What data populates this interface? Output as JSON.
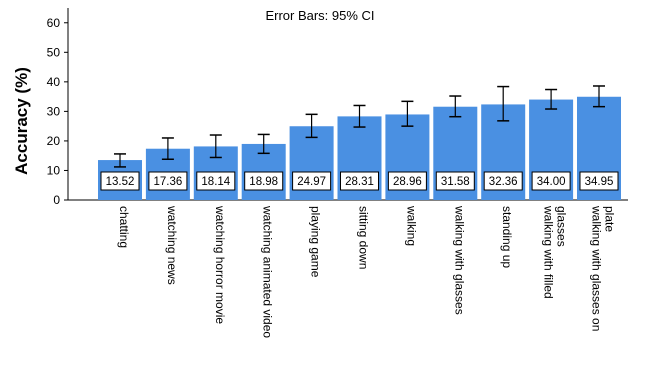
{
  "chart_data": {
    "type": "bar",
    "annotation": "Error Bars: 95% CI",
    "ylabel": "Accuracy (%)",
    "xlabel": "",
    "ylim": [
      0,
      65
    ],
    "yticks": [
      0,
      10,
      20,
      30,
      40,
      50,
      60
    ],
    "bar_color": "#4a90e2",
    "categories": [
      "chatting",
      "watching news",
      "watching horror movie",
      "watching animated video",
      "playing game",
      "sitting down",
      "walking",
      "walking with glasses",
      "standing up",
      "walking with filled glasses",
      "walking with glasses on plate"
    ],
    "category_lines": [
      [
        "chatting"
      ],
      [
        "watching news"
      ],
      [
        "watching horror movie"
      ],
      [
        "watching animated video"
      ],
      [
        "playing game"
      ],
      [
        "sitting down"
      ],
      [
        "walking"
      ],
      [
        "walking with  glasses"
      ],
      [
        "standing up"
      ],
      [
        "walking with filled",
        "glasses"
      ],
      [
        "walking with glasses on",
        "plate"
      ]
    ],
    "values": [
      13.52,
      17.36,
      18.14,
      18.98,
      24.97,
      28.31,
      28.96,
      31.58,
      32.36,
      34.0,
      34.95
    ],
    "value_labels": [
      "13.52",
      "17.36",
      "18.14",
      "18.98",
      "24.97",
      "28.31",
      "28.96",
      "31.58",
      "32.36",
      "34.00",
      "34.95"
    ],
    "ci_low": [
      11.2,
      13.8,
      14.4,
      15.8,
      21.2,
      24.7,
      25.0,
      28.2,
      26.8,
      30.8,
      31.6
    ],
    "ci_high": [
      15.6,
      21.0,
      22.0,
      22.2,
      29.0,
      32.0,
      33.4,
      35.2,
      38.4,
      37.4,
      38.6
    ]
  }
}
